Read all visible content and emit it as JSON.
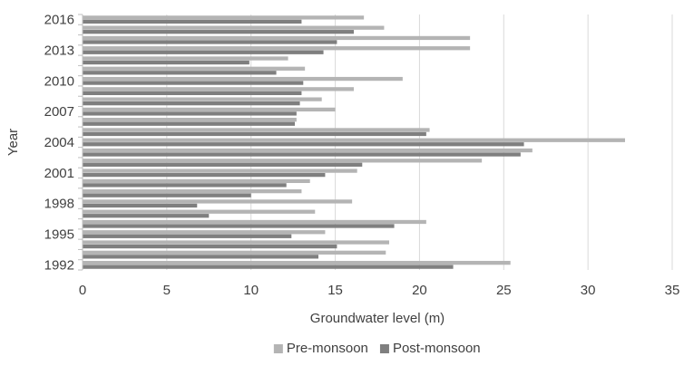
{
  "chart_data": {
    "type": "bar",
    "orientation": "horizontal",
    "title": "",
    "xlabel": "Groundwater level (m)",
    "ylabel": "Year",
    "xlim": [
      0,
      35
    ],
    "x_ticks": [
      0,
      5,
      10,
      15,
      20,
      25,
      30,
      35
    ],
    "y_tick_labels": [
      "1992",
      "1995",
      "1998",
      "2001",
      "2004",
      "2007",
      "2010",
      "2013",
      "2016"
    ],
    "categories": [
      "1992",
      "1993",
      "1994",
      "1995",
      "1996",
      "1997",
      "1998",
      "1999",
      "2000",
      "2001",
      "2002",
      "2003",
      "2004",
      "2005",
      "2006",
      "2007",
      "2008",
      "2009",
      "2010",
      "2011",
      "2012",
      "2013",
      "2014",
      "2015",
      "2016"
    ],
    "grid": "vertical",
    "legend_position": "bottom",
    "series": [
      {
        "name": "Pre-monsoon",
        "color": "#b4b4b4",
        "values": [
          25.4,
          18.0,
          18.2,
          14.4,
          20.4,
          13.8,
          16.0,
          13.0,
          13.5,
          16.3,
          23.7,
          26.7,
          32.2,
          20.6,
          12.7,
          15.0,
          14.2,
          16.1,
          19.0,
          13.2,
          12.2,
          23.0,
          23.0,
          17.9,
          16.7
        ]
      },
      {
        "name": "Post-monsoon",
        "color": "#7f7f7f",
        "values": [
          22.0,
          14.0,
          15.1,
          12.4,
          18.5,
          7.5,
          6.8,
          10.0,
          12.1,
          14.4,
          16.6,
          26.0,
          26.2,
          20.4,
          12.6,
          12.7,
          12.9,
          13.0,
          13.1,
          11.5,
          9.9,
          14.3,
          15.1,
          16.1,
          13.0
        ]
      }
    ]
  }
}
